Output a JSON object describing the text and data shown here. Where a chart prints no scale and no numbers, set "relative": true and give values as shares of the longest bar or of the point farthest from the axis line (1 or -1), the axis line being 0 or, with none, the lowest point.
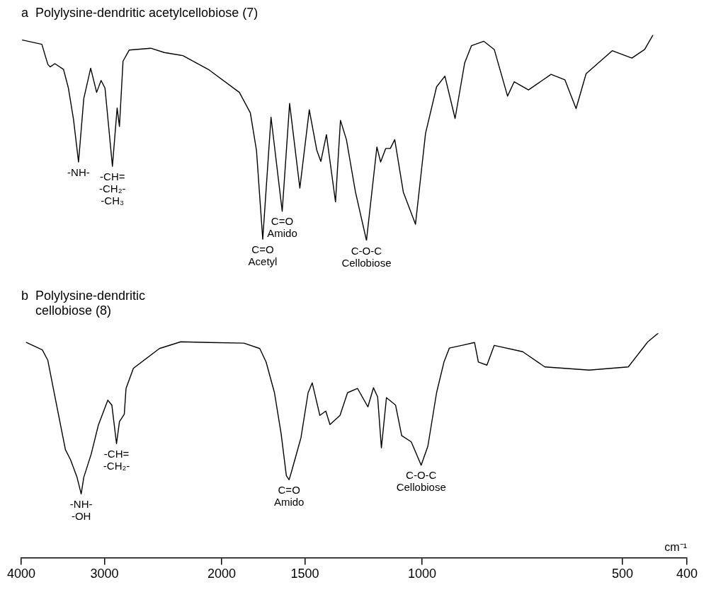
{
  "chart_data": [
    {
      "type": "line",
      "title": "a  Polylysine-dendritic acetylcellobiose (7)",
      "relative": true,
      "tick_labels": false,
      "log": "x",
      "marker": "none",
      "line_style": "solid",
      "xlim": [
        4000,
        400
      ],
      "xticks": [
        4000,
        3000,
        2000,
        1500,
        1000,
        500,
        400
      ],
      "x": [
        3982,
        3725,
        3649,
        3620,
        3561,
        3456,
        3398,
        3339,
        3281,
        3222,
        3146,
        3082,
        3035,
        2994,
        2918,
        2871,
        2848,
        2813,
        2754,
        2556,
        2439,
        2287,
        2088,
        1881,
        1811,
        1773,
        1735,
        1686,
        1622,
        1581,
        1526,
        1477,
        1439,
        1419,
        1392,
        1349,
        1326,
        1299,
        1259,
        1212,
        1169,
        1154,
        1134,
        1116,
        1099,
        1067,
        1023,
        988,
        951,
        924,
        892,
        863,
        843,
        808,
        779,
        744,
        727,
        692,
        640,
        610,
        587,
        567,
        518,
        484,
        463,
        450
      ],
      "series": [
        {
          "color": "#000000",
          "values": [
            0.976,
            0.955,
            0.858,
            0.845,
            0.861,
            0.833,
            0.742,
            0.591,
            0.382,
            0.691,
            0.839,
            0.721,
            0.779,
            0.742,
            0.361,
            0.645,
            0.555,
            0.873,
            0.927,
            0.936,
            0.915,
            0.9,
            0.83,
            0.721,
            0.621,
            0.439,
            0.006,
            0.6,
            0.142,
            0.667,
            0.255,
            0.636,
            0.439,
            0.385,
            0.515,
            0.188,
            0.585,
            0.491,
            0.236,
            0,
            0.455,
            0.382,
            0.448,
            0.448,
            0.491,
            0.236,
            0.079,
            0.521,
            0.748,
            0.8,
            0.594,
            0.864,
            0.948,
            0.97,
            0.93,
            0.703,
            0.773,
            0.733,
            0.809,
            0.782,
            0.642,
            0.812,
            0.924,
            0.888,
            0.93,
            1
          ]
        }
      ],
      "annotations": [
        {
          "text": "-NH-",
          "x": 3281,
          "y": 0.382
        },
        {
          "text": "-CH=\n-CH₂-\n-CH₃",
          "x": 2918,
          "y": 0.361
        },
        {
          "text": "C=O\nAcetyl",
          "x": 1735,
          "y": 0.006
        },
        {
          "text": "C=O\nAmido",
          "x": 1622,
          "y": 0.142
        },
        {
          "text": "C-O-C\nCellobiose",
          "x": 1212,
          "y": 0
        }
      ]
    },
    {
      "type": "line",
      "title": "b  Polylysine-dendritic\n    cellobiose (8)",
      "relative": true,
      "tick_labels": "x",
      "log": "x",
      "marker": "none",
      "line_style": "solid",
      "xlabel": "cm⁻¹",
      "xlim": [
        4000,
        400
      ],
      "xticks": [
        4000,
        3000,
        2000,
        1500,
        1000,
        500,
        400
      ],
      "x": [
        3930,
        3719,
        3649,
        3550,
        3433,
        3374,
        3298,
        3251,
        3222,
        3140,
        3064,
        2965,
        2924,
        2877,
        2848,
        2801,
        2784,
        2714,
        2480,
        2304,
        2088,
        1852,
        1753,
        1715,
        1666,
        1628,
        1599,
        1584,
        1570,
        1520,
        1483,
        1462,
        1424,
        1395,
        1375,
        1328,
        1294,
        1250,
        1206,
        1183,
        1166,
        1151,
        1131,
        1096,
        1073,
        1038,
        1003,
        980,
        951,
        927,
        910,
        872,
        834,
        823,
        799,
        779,
        706,
        654,
        561,
        490,
        458,
        442
      ],
      "series": [
        {
          "color": "#000000",
          "values": [
            0.959,
            0.926,
            0.88,
            0.699,
            0.481,
            0.437,
            0.358,
            0.284,
            0.358,
            0.462,
            0.59,
            0.702,
            0.68,
            0.508,
            0.606,
            0.639,
            0.754,
            0.844,
            0.932,
            0.962,
            0.959,
            0.956,
            0.932,
            0.872,
            0.735,
            0.552,
            0.366,
            0.347,
            0.385,
            0.535,
            0.735,
            0.779,
            0.634,
            0.653,
            0.593,
            0.634,
            0.735,
            0.754,
            0.672,
            0.757,
            0.716,
            0.489,
            0.713,
            0.68,
            0.544,
            0.516,
            0.412,
            0.497,
            0.735,
            0.872,
            0.934,
            0.946,
            0.959,
            0.872,
            0.858,
            0.946,
            0.918,
            0.85,
            0.836,
            0.85,
            0.962,
            1
          ]
        }
      ],
      "annotations": [
        {
          "text": "-NH-\n-OH",
          "x": 3251,
          "y": 0.284
        },
        {
          "text": "-CH=\n-CH₂-",
          "x": 2877,
          "y": 0.508
        },
        {
          "text": "C=O\nAmido",
          "x": 1584,
          "y": 0.347
        },
        {
          "text": "C-O-C\nCellobiose",
          "x": 1003,
          "y": 0.412
        }
      ]
    }
  ]
}
